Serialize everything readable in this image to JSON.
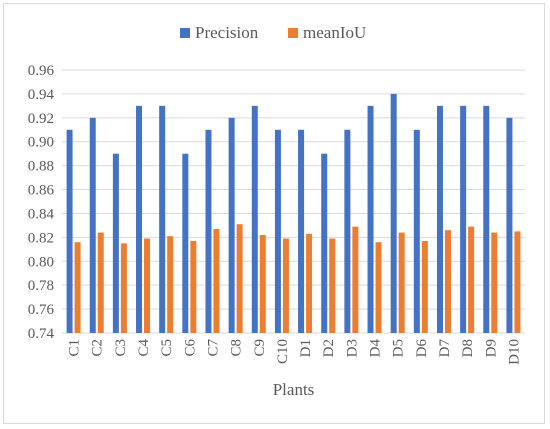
{
  "chart_data": {
    "type": "bar",
    "title": "",
    "xlabel": "Plants",
    "ylabel": "",
    "ylim": [
      0.74,
      0.96
    ],
    "ytick_step": 0.02,
    "grid": "horizontal",
    "legend_position": "top",
    "categories": [
      "C1",
      "C2",
      "C3",
      "C4",
      "C5",
      "C6",
      "C7",
      "C8",
      "C9",
      "C10",
      "D1",
      "D2",
      "D3",
      "D4",
      "D5",
      "D6",
      "D7",
      "D8",
      "D9",
      "D10"
    ],
    "series": [
      {
        "name": "Precision",
        "color": "#4472c4",
        "values": [
          0.91,
          0.92,
          0.89,
          0.93,
          0.93,
          0.89,
          0.91,
          0.92,
          0.93,
          0.91,
          0.91,
          0.89,
          0.91,
          0.93,
          0.94,
          0.91,
          0.93,
          0.93,
          0.93,
          0.92
        ]
      },
      {
        "name": "meanIoU",
        "color": "#ed7d31",
        "values": [
          0.816,
          0.824,
          0.815,
          0.819,
          0.821,
          0.817,
          0.827,
          0.831,
          0.822,
          0.819,
          0.823,
          0.819,
          0.829,
          0.816,
          0.824,
          0.817,
          0.826,
          0.829,
          0.824,
          0.825
        ]
      }
    ]
  }
}
